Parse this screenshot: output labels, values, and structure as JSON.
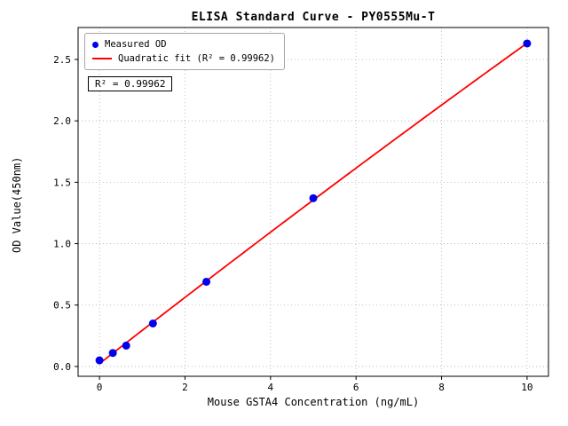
{
  "chart_data": {
    "type": "scatter",
    "title": "ELISA Standard Curve - PY0555Mu-T",
    "xlabel": "Mouse GSTA4 Concentration (ng/mL)",
    "ylabel": "OD Value(450nm)",
    "annotation": "R² = 0.99962",
    "r_squared": 0.99962,
    "x": [
      0,
      0.3125,
      0.625,
      1.25,
      2.5,
      5,
      10
    ],
    "series": [
      {
        "name": "Measured OD",
        "type": "scatter",
        "color": "#0000ee",
        "values": [
          0.05,
          0.11,
          0.17,
          0.35,
          0.69,
          1.37,
          2.63
        ]
      },
      {
        "name": "Quadratic fit (R² = 0.99962)",
        "type": "line",
        "color": "#ff0000"
      }
    ],
    "xlim": [
      -0.5,
      10.5
    ],
    "ylim": [
      -0.08,
      2.76
    ],
    "xticks": [
      0,
      2,
      4,
      6,
      8,
      10
    ],
    "xtick_labels": [
      "0",
      "2",
      "4",
      "6",
      "8",
      "10"
    ],
    "yticks": [
      0.0,
      0.5,
      1.0,
      1.5,
      2.0,
      2.5
    ],
    "ytick_labels": [
      "0.0",
      "0.5",
      "1.0",
      "1.5",
      "2.0",
      "2.5"
    ],
    "grid": true,
    "grid_color": "#b0b0b0",
    "legend_position": "upper-left"
  }
}
